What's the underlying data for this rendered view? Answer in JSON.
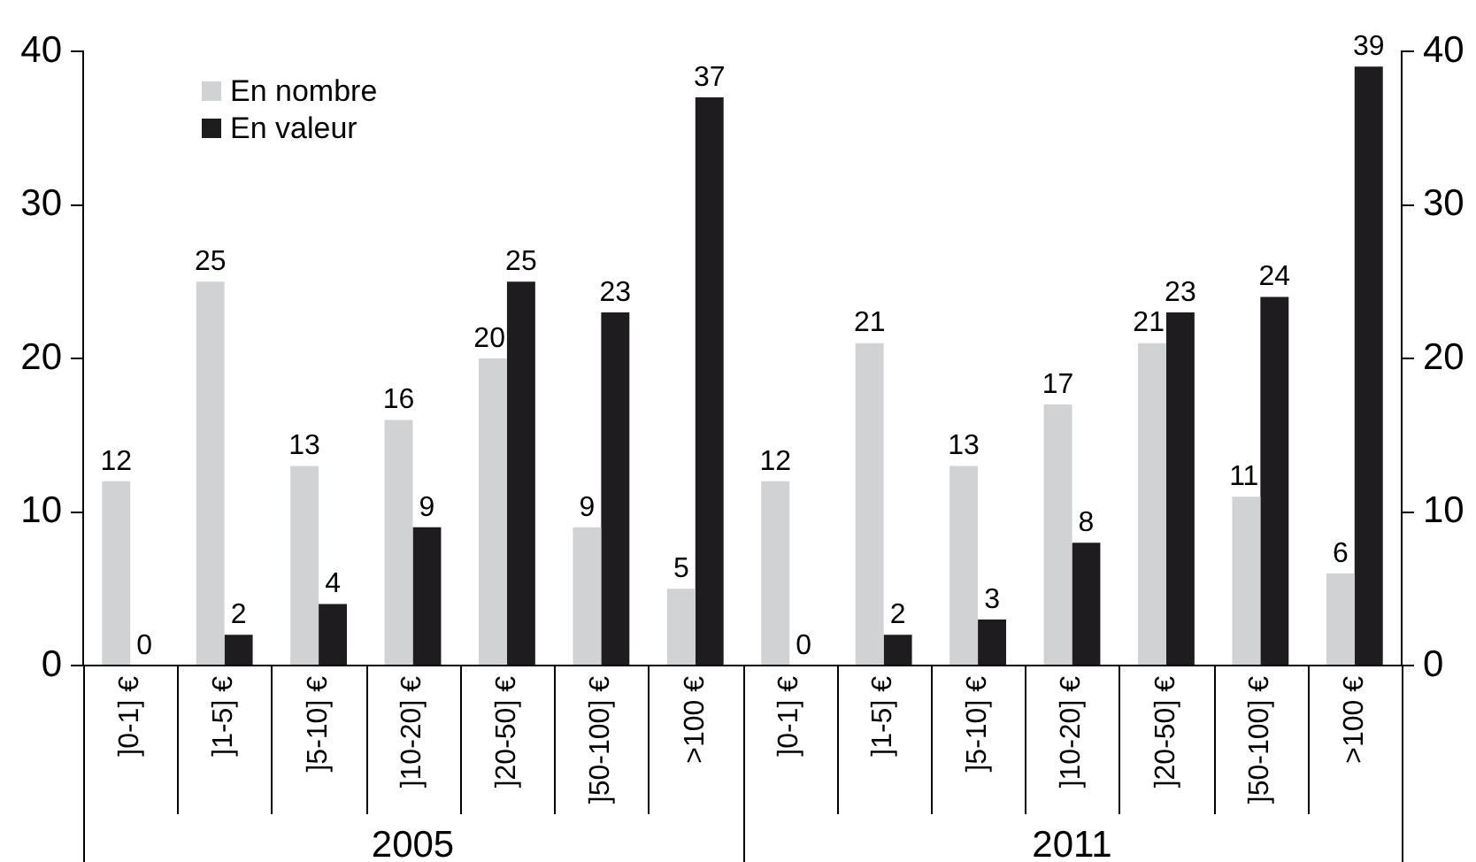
{
  "chart_data": {
    "type": "bar",
    "categories": [
      "]0-1] €",
      "]1-5] €",
      "]5-10] €",
      "]10-20] €",
      "]20-50] €",
      "]50-100] €",
      ">100 €",
      "]0-1] €",
      "]1-5] €",
      "]5-10] €",
      "]10-20] €",
      "]20-50] €",
      "]50-100] €",
      ">100 €"
    ],
    "series": [
      {
        "name": "En nombre",
        "color": "#d1d2d4",
        "values": [
          12,
          25,
          13,
          16,
          20,
          9,
          5,
          12,
          21,
          13,
          17,
          21,
          11,
          6
        ]
      },
      {
        "name": "En valeur",
        "color": "#1e1c1f",
        "values": [
          0,
          2,
          4,
          9,
          25,
          23,
          37,
          0,
          2,
          3,
          8,
          23,
          24,
          39
        ]
      }
    ],
    "ylim": [
      0,
      40
    ],
    "yticks": [
      0,
      10,
      20,
      30,
      40
    ],
    "y2lim": [
      0,
      40
    ],
    "y2ticks": [
      0,
      10,
      20,
      30,
      40
    ],
    "annotations": [
      "2005",
      "2011"
    ],
    "data_labels": true,
    "legend": "top left"
  }
}
